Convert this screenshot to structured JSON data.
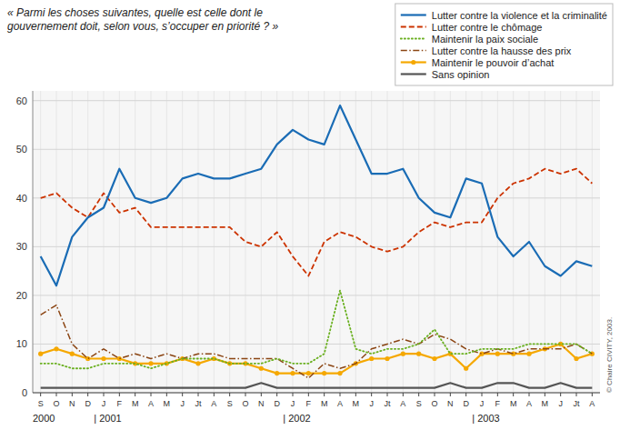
{
  "chart_data": {
    "type": "line",
    "title": "« Parmi les choses suivantes, quelle est celle dont le\ngouvernement doit, selon vous, s’occuper en priorité ? »",
    "categories": [
      "S",
      "O",
      "N",
      "D",
      "J",
      "F",
      "M",
      "A",
      "M",
      "J",
      "Jt",
      "A",
      "S",
      "O",
      "N",
      "D",
      "J",
      "F",
      "M",
      "A",
      "M",
      "J",
      "Jt",
      "A",
      "S",
      "O",
      "N",
      "D",
      "J",
      "F",
      "M",
      "A",
      "M",
      "J",
      "Jt",
      "A"
    ],
    "series": [
      {
        "name": "Lutter contre la violence et la criminalité",
        "color": "#1a6cb5",
        "line_style": "solid",
        "values": [
          28,
          22,
          32,
          36,
          38,
          46,
          40,
          39,
          40,
          44,
          45,
          44,
          44,
          45,
          46,
          51,
          54,
          52,
          51,
          59,
          52,
          45,
          45,
          46,
          40,
          37,
          36,
          44,
          43,
          32,
          28,
          31,
          26,
          24,
          27,
          26
        ]
      },
      {
        "name": "Lutter contre le chômage",
        "color": "#cc3300",
        "line_style": "dashed",
        "values": [
          40,
          41,
          38,
          36,
          41,
          37,
          38,
          34,
          34,
          34,
          34,
          34,
          34,
          31,
          30,
          33,
          28,
          24,
          31,
          33,
          32,
          30,
          29,
          30,
          33,
          35,
          34,
          35,
          35,
          40,
          43,
          44,
          46,
          45,
          46,
          43
        ]
      },
      {
        "name": "Maintenir la paix sociale",
        "color": "#6ab020",
        "line_style": "dotted",
        "values": [
          6,
          6,
          5,
          5,
          6,
          6,
          6,
          5,
          6,
          7,
          7,
          7,
          6,
          6,
          6,
          7,
          6,
          6,
          8,
          21,
          9,
          8,
          9,
          9,
          10,
          13,
          8,
          8,
          9,
          9,
          9,
          10,
          10,
          10,
          10,
          8
        ]
      },
      {
        "name": "Lutter contre la hausse des prix",
        "color": "#8b4513",
        "line_style": "dashdot",
        "values": [
          16,
          18,
          10,
          7,
          9,
          7,
          8,
          7,
          8,
          7,
          8,
          8,
          7,
          7,
          7,
          7,
          5,
          3,
          6,
          5,
          6,
          9,
          10,
          11,
          10,
          12,
          11,
          9,
          8,
          9,
          8,
          9,
          9,
          9,
          10,
          8
        ]
      },
      {
        "name": "Maintenir le pouvoir d’achat",
        "color": "#f5a800",
        "line_style": "solid",
        "marker": "circle",
        "values": [
          8,
          9,
          8,
          7,
          7,
          7,
          6,
          6,
          6,
          7,
          6,
          7,
          6,
          6,
          5,
          4,
          4,
          4,
          4,
          4,
          6,
          7,
          7,
          8,
          8,
          7,
          8,
          5,
          8,
          8,
          8,
          8,
          9,
          10,
          7,
          8
        ]
      },
      {
        "name": "Sans opinion",
        "color": "#555555",
        "line_style": "solid",
        "values": [
          1,
          1,
          1,
          1,
          1,
          1,
          1,
          1,
          1,
          1,
          1,
          1,
          1,
          1,
          2,
          1,
          1,
          1,
          1,
          1,
          1,
          1,
          1,
          1,
          1,
          1,
          2,
          1,
          1,
          2,
          2,
          1,
          1,
          2,
          1,
          1
        ]
      }
    ],
    "ylim": [
      0,
      62
    ],
    "yticks": [
      0,
      10,
      20,
      30,
      40,
      50,
      60
    ],
    "grid": true,
    "legend": "upper right",
    "annotations": [
      "2000",
      "| 2001",
      "| 2002",
      "| 2003"
    ],
    "source": "© Chaire CIVITY, 2003."
  }
}
